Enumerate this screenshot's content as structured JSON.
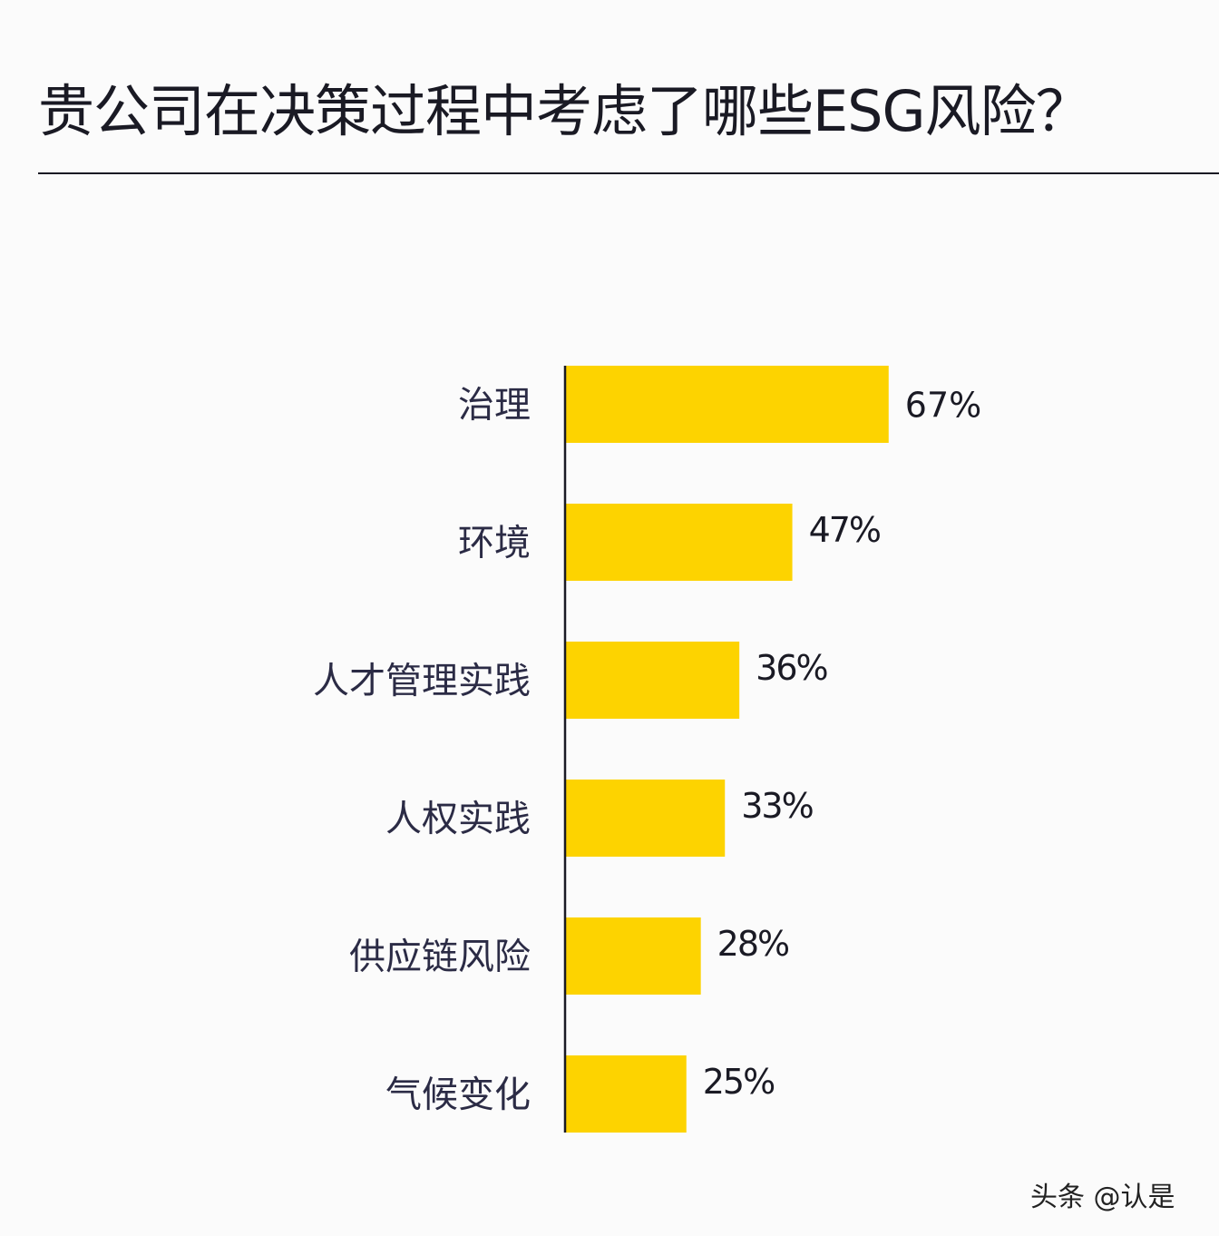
{
  "chart_data": {
    "type": "bar",
    "orientation": "horizontal",
    "title": "贵公司在决策过程中考虑了哪些ESG风险？",
    "categories": [
      "治理",
      "环境",
      "人才管理实践",
      "人权实践",
      "供应链风险",
      "气候变化"
    ],
    "values": [
      67,
      47,
      36,
      33,
      28,
      25
    ],
    "data_labels": [
      "67%",
      "47%",
      "36%",
      "33%",
      "28%",
      "25%"
    ],
    "unit": "%",
    "xlim": [
      0,
      100
    ],
    "grid": false,
    "bar_color": "#fdd300",
    "axis_color": "#1a1a24",
    "label_color": "#2b2b45"
  },
  "watermark": "头条 @认是"
}
